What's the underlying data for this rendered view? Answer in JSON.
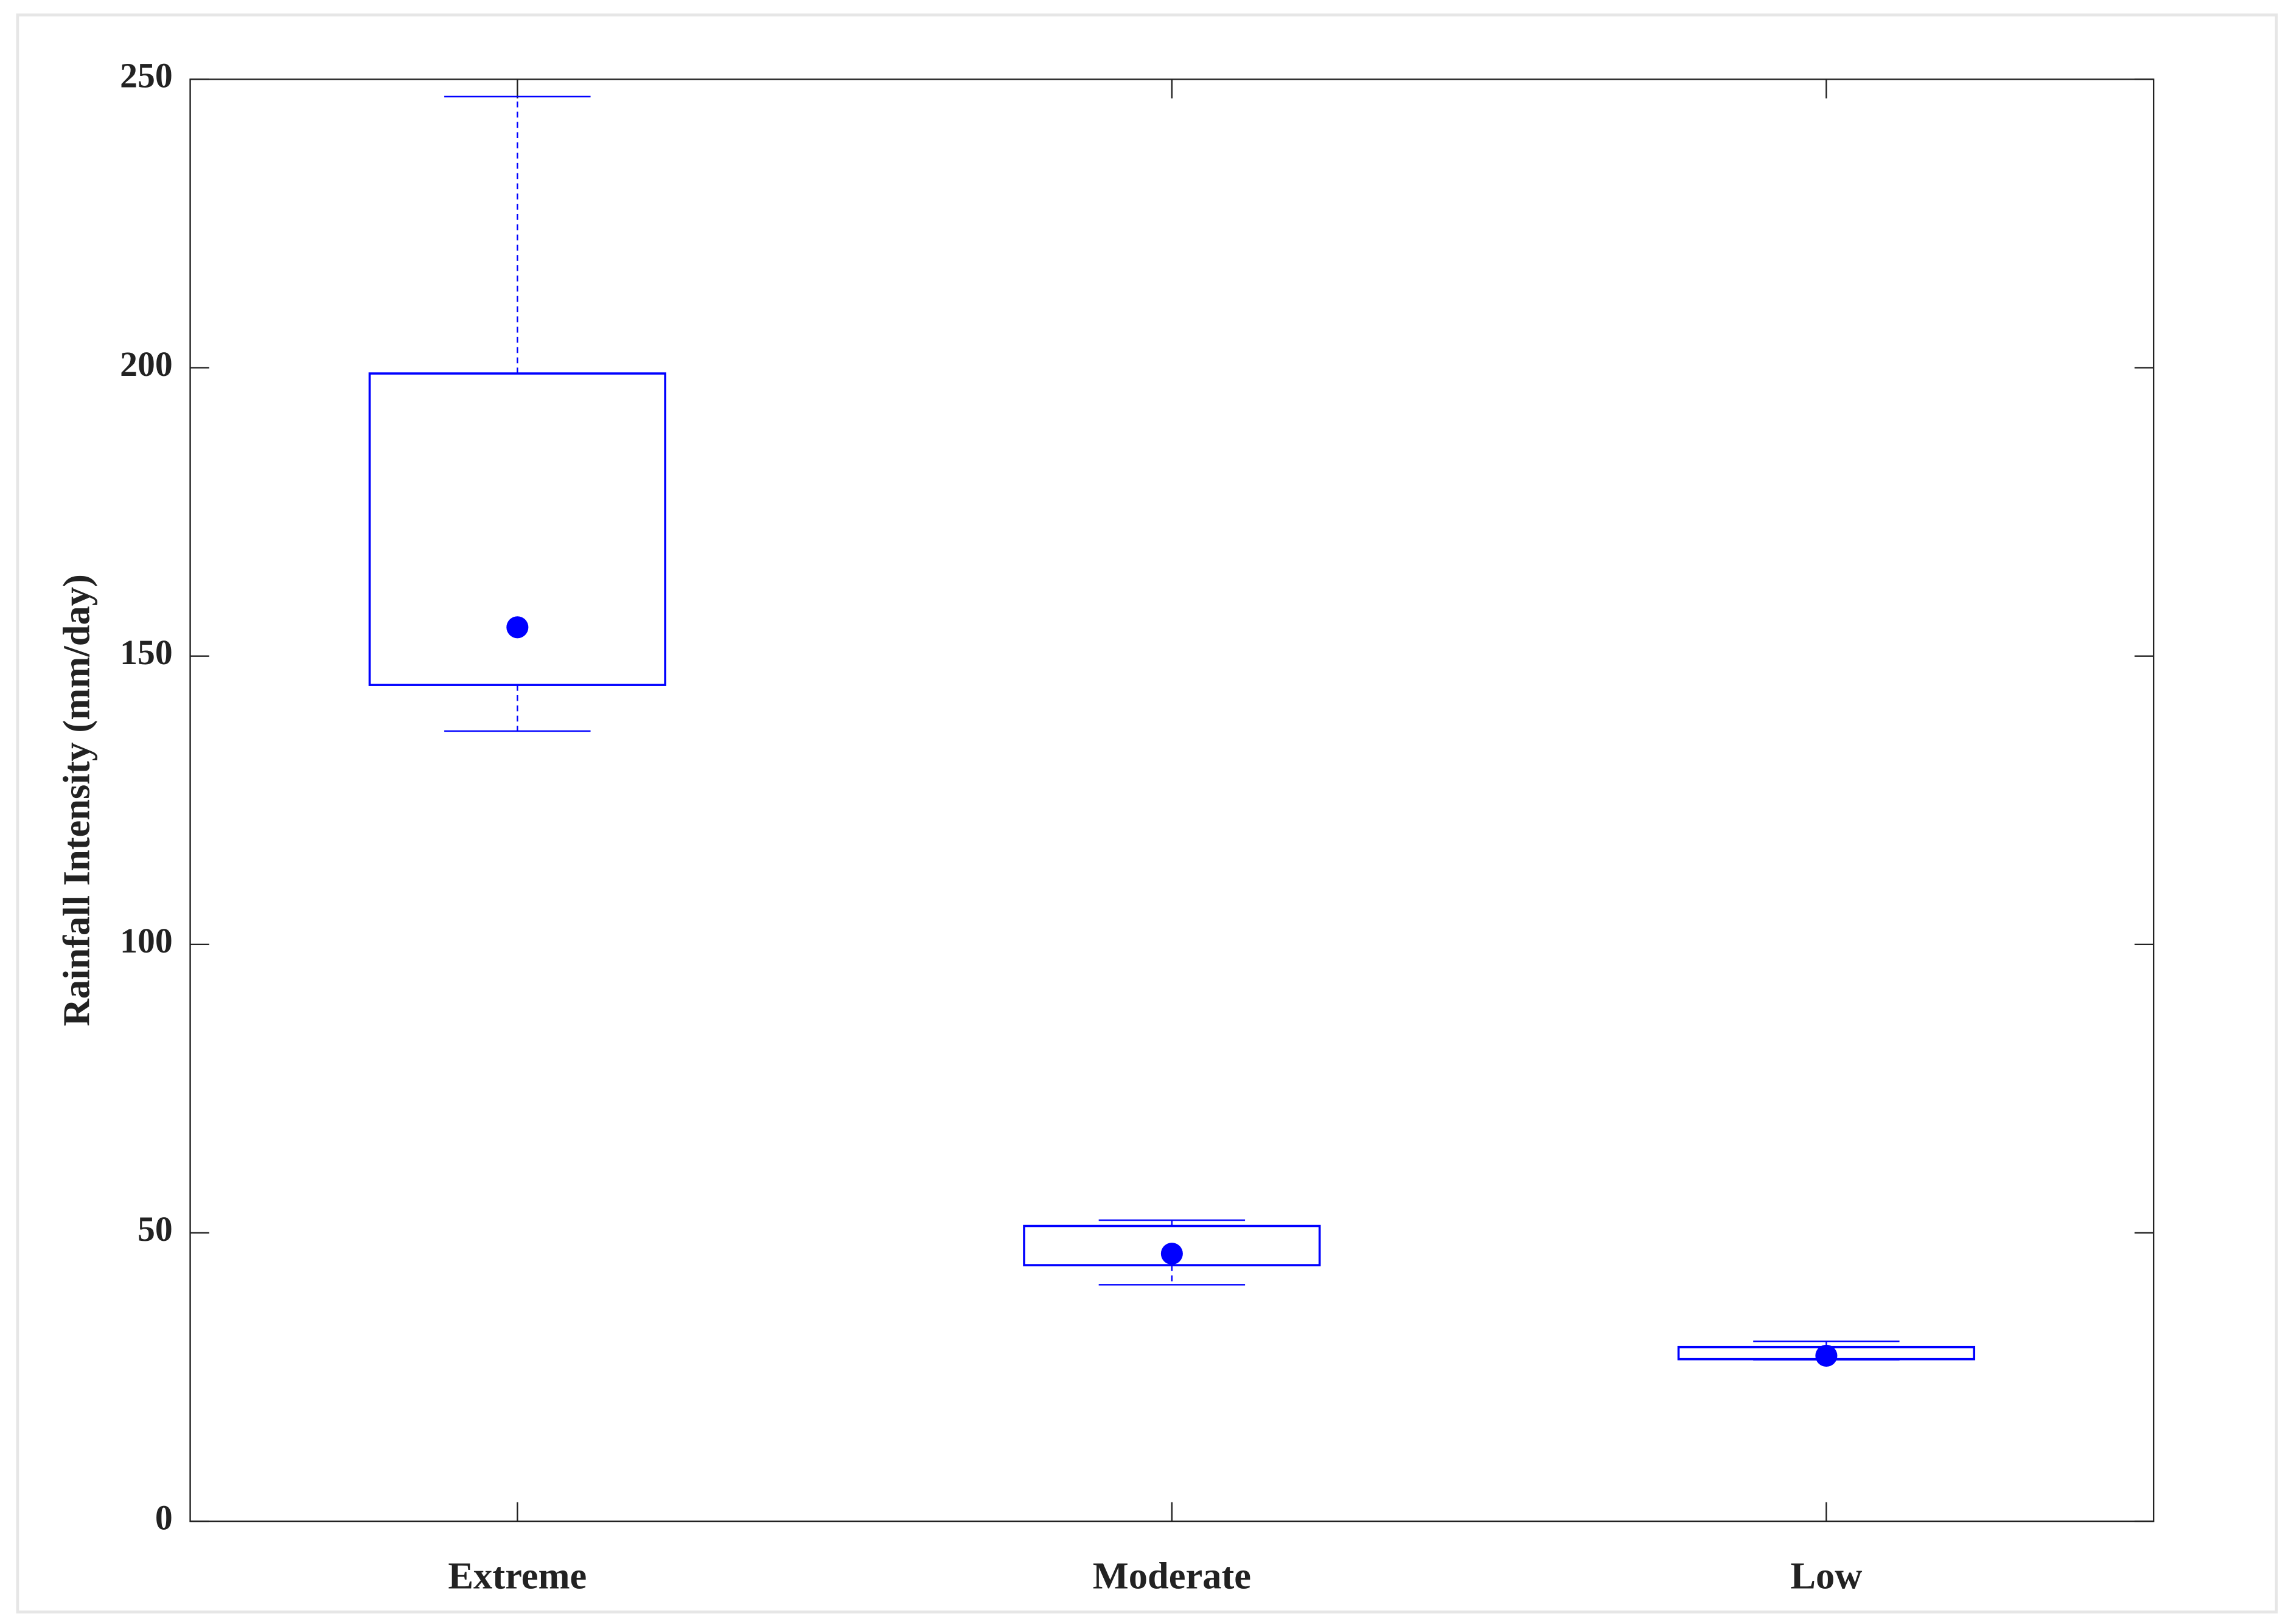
{
  "chart_data": {
    "type": "box",
    "y_label": "Rainfall Intensity (mm/day)",
    "categories": [
      "Extreme",
      "Moderate",
      "Low"
    ],
    "whisker_low": [
      137,
      41,
      28
    ],
    "q1": [
      145,
      44.4,
      28.1
    ],
    "median": [
      155,
      46.4,
      28.7
    ],
    "q3": [
      199,
      51.2,
      30.2
    ],
    "whisker_high": [
      247,
      52.2,
      31.2
    ],
    "color": "#0000ff",
    "ylim": [
      0,
      250
    ],
    "yticks": [
      0,
      50,
      100,
      150,
      200,
      250
    ],
    "grid": false
  }
}
